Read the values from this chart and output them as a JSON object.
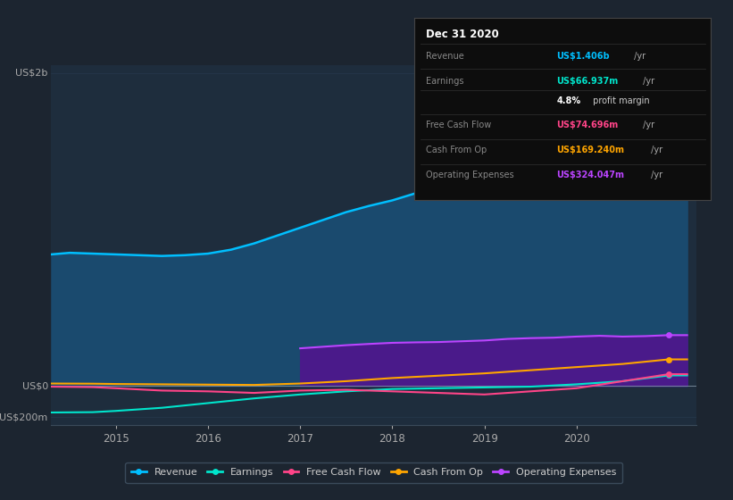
{
  "bg_color": "#1c2530",
  "plot_bg_color": "#1e2d3d",
  "grid_color": "#2a3d52",
  "ylabel_top": "US$2b",
  "ylabel_zero": "US$0",
  "ylabel_bottom": "-US$200m",
  "xlim": [
    2014.3,
    2021.3
  ],
  "ylim": [
    -250000000,
    2050000000
  ],
  "x_ticks": [
    2015,
    2016,
    2017,
    2018,
    2019,
    2020
  ],
  "yticks": [
    -200000000,
    0,
    2000000000
  ],
  "series": {
    "revenue": {
      "color": "#00bfff",
      "fill_color": "#1a4a6e",
      "label": "Revenue",
      "values_x": [
        2014.3,
        2014.5,
        2014.75,
        2015.0,
        2015.25,
        2015.5,
        2015.75,
        2016.0,
        2016.25,
        2016.5,
        2016.75,
        2017.0,
        2017.25,
        2017.5,
        2017.75,
        2018.0,
        2018.25,
        2018.5,
        2018.75,
        2019.0,
        2019.25,
        2019.5,
        2019.75,
        2020.0,
        2020.25,
        2020.5,
        2020.75,
        2021.0,
        2021.2
      ],
      "values_y": [
        840000000,
        850000000,
        845000000,
        840000000,
        835000000,
        830000000,
        835000000,
        845000000,
        870000000,
        910000000,
        960000000,
        1010000000,
        1060000000,
        1110000000,
        1150000000,
        1185000000,
        1230000000,
        1280000000,
        1330000000,
        1390000000,
        1500000000,
        1580000000,
        1640000000,
        1700000000,
        1690000000,
        1620000000,
        1520000000,
        1406000000,
        1406000000
      ]
    },
    "earnings": {
      "color": "#00e5cc",
      "label": "Earnings",
      "values_x": [
        2014.3,
        2014.75,
        2015.0,
        2015.5,
        2016.0,
        2016.5,
        2017.0,
        2017.5,
        2018.0,
        2018.5,
        2019.0,
        2019.5,
        2020.0,
        2020.5,
        2021.0,
        2021.2
      ],
      "values_y": [
        -170000000,
        -168000000,
        -160000000,
        -140000000,
        -110000000,
        -80000000,
        -55000000,
        -35000000,
        -20000000,
        -15000000,
        -10000000,
        -5000000,
        10000000,
        30000000,
        66937000,
        66937000
      ]
    },
    "free_cash_flow": {
      "color": "#ff4488",
      "label": "Free Cash Flow",
      "values_x": [
        2014.3,
        2014.75,
        2015.0,
        2015.5,
        2016.0,
        2016.5,
        2017.0,
        2017.5,
        2018.0,
        2018.5,
        2019.0,
        2019.5,
        2020.0,
        2020.5,
        2021.0,
        2021.2
      ],
      "values_y": [
        -5000000,
        -8000000,
        -15000000,
        -30000000,
        -35000000,
        -45000000,
        -30000000,
        -25000000,
        -35000000,
        -45000000,
        -55000000,
        -35000000,
        -15000000,
        30000000,
        74696000,
        74696000
      ]
    },
    "cash_from_op": {
      "color": "#ffa500",
      "label": "Cash From Op",
      "values_x": [
        2014.3,
        2014.75,
        2015.0,
        2015.5,
        2016.0,
        2016.5,
        2017.0,
        2017.5,
        2018.0,
        2018.5,
        2019.0,
        2019.5,
        2020.0,
        2020.5,
        2021.0,
        2021.2
      ],
      "values_y": [
        15000000,
        14000000,
        12000000,
        10000000,
        8000000,
        6000000,
        15000000,
        30000000,
        50000000,
        65000000,
        80000000,
        100000000,
        120000000,
        140000000,
        169240000,
        169240000
      ]
    },
    "operating_expenses": {
      "color": "#bb44ff",
      "fill_color": "#4a1a8a",
      "label": "Operating Expenses",
      "values_x": [
        2017.0,
        2017.25,
        2017.5,
        2017.75,
        2018.0,
        2018.25,
        2018.5,
        2018.75,
        2019.0,
        2019.25,
        2019.5,
        2019.75,
        2020.0,
        2020.25,
        2020.5,
        2020.75,
        2021.0,
        2021.2
      ],
      "values_y": [
        240000000,
        250000000,
        260000000,
        268000000,
        275000000,
        278000000,
        280000000,
        285000000,
        290000000,
        300000000,
        305000000,
        308000000,
        315000000,
        320000000,
        315000000,
        318000000,
        324047000,
        324047000
      ]
    }
  },
  "info_box": {
    "title": "Dec 31 2020",
    "title_color": "#ffffff",
    "label_color": "#888888",
    "bg_color": "#0d0d0d",
    "border_color": "#444444",
    "rows": [
      {
        "label": "Revenue",
        "value": "US$1.406b",
        "suffix": " /yr",
        "value_color": "#00bfff"
      },
      {
        "label": "Earnings",
        "value": "US$66.937m",
        "suffix": " /yr",
        "value_color": "#00e5cc"
      },
      {
        "label": "",
        "value": "4.8%",
        "suffix": " profit margin",
        "value_color": "#ffffff",
        "suffix_color": "#cccccc"
      },
      {
        "label": "Free Cash Flow",
        "value": "US$74.696m",
        "suffix": " /yr",
        "value_color": "#ff4488"
      },
      {
        "label": "Cash From Op",
        "value": "US$169.240m",
        "suffix": " /yr",
        "value_color": "#ffa500"
      },
      {
        "label": "Operating Expenses",
        "value": "US$324.047m",
        "suffix": " /yr",
        "value_color": "#bb44ff"
      }
    ]
  },
  "legend": [
    {
      "label": "Revenue",
      "color": "#00bfff"
    },
    {
      "label": "Earnings",
      "color": "#00e5cc"
    },
    {
      "label": "Free Cash Flow",
      "color": "#ff4488"
    },
    {
      "label": "Cash From Op",
      "color": "#ffa500"
    },
    {
      "label": "Operating Expenses",
      "color": "#bb44ff"
    }
  ]
}
